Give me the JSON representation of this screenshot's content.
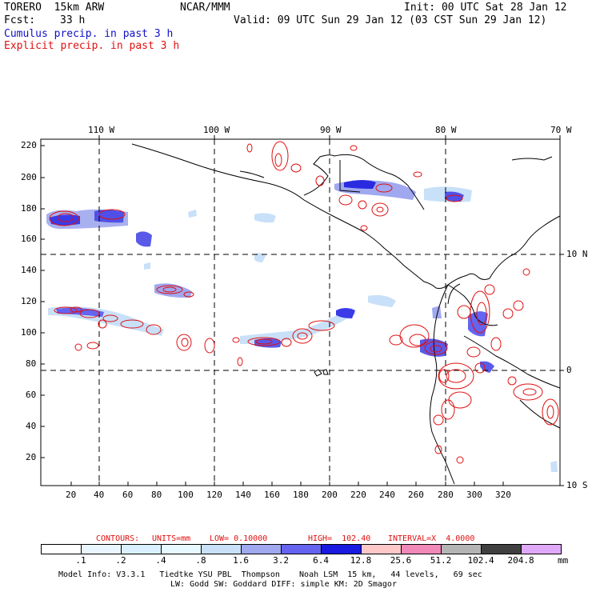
{
  "header": {
    "model": "TORERO  15km ARW",
    "center": "NCAR/MMM",
    "init": "Init: 00 UTC Sat 28 Jan 12",
    "fcst_label": "Fcst:",
    "fcst_value": "33 h",
    "valid": "Valid: 09 UTC Sun 29 Jan 12 (03 CST Sun 29 Jan 12)"
  },
  "legend": {
    "cumulus": "Cumulus precip. in past 3 h",
    "explicit": "Explicit precip. in past 3 h",
    "cumulus_color": "#1010c8",
    "explicit_color": "#e01010"
  },
  "map": {
    "top_lon_labels": [
      "110 W",
      "100 W",
      "90 W",
      "80 W",
      "70 W"
    ],
    "right_lat_labels": [
      "10 N",
      "0",
      "10 S"
    ],
    "left_ticks": [
      "220",
      "200",
      "180",
      "160",
      "140",
      "120",
      "100",
      "80",
      "60",
      "40",
      "20"
    ],
    "bottom_ticks": [
      "20",
      "40",
      "60",
      "80",
      "100",
      "120",
      "140",
      "160",
      "180",
      "200",
      "220",
      "240",
      "260",
      "280",
      "300",
      "320"
    ]
  },
  "contour_info": {
    "label": "CONTOURS:",
    "units": "UNITS=mm",
    "low": "LOW= 0.10000",
    "high": "HIGH=  102.40",
    "interval": "INTERVAL=X  4.0000"
  },
  "colorbar": {
    "labels": [
      ".1",
      ".2",
      ".4",
      ".8",
      "1.6",
      "3.2",
      "6.4",
      "12.8",
      "25.6",
      "51.2",
      "102.4",
      "204.8"
    ],
    "unit": "mm",
    "colors": [
      "#ffffff",
      "#eaf6ff",
      "#d8f0ff",
      "#e8f8ff",
      "#c8e0f8",
      "#a0a8f0",
      "#6464f0",
      "#1a1ae0",
      "#ffc8c8",
      "#f088b8",
      "#b4b4b4",
      "#404040",
      "#e0a8f8"
    ]
  },
  "footer": {
    "line1": "Model Info: V3.3.1   Tiedtke YSU PBL  Thompson    Noah LSM  15 km,   44 levels,   69 sec",
    "line2": "LW: Godd SW: Goddard DIFF: simple KM: 2D Smagor"
  }
}
